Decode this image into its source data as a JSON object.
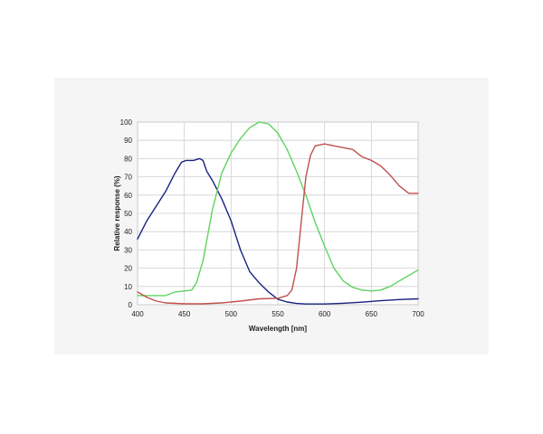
{
  "chart_data": {
    "type": "line",
    "title": "",
    "xlabel": "Wavelength [nm]",
    "ylabel": "Relative response  (%)",
    "xlim": [
      400,
      700
    ],
    "ylim": [
      0,
      100
    ],
    "x_ticks": [
      400,
      450,
      500,
      550,
      600,
      650,
      700
    ],
    "y_ticks": [
      0,
      10,
      20,
      30,
      40,
      50,
      60,
      70,
      80,
      90,
      100
    ],
    "grid": true,
    "legend": "none",
    "series": [
      {
        "color": "#1a237e",
        "points": [
          [
            400,
            36
          ],
          [
            410,
            46
          ],
          [
            420,
            54
          ],
          [
            430,
            62
          ],
          [
            440,
            72
          ],
          [
            447,
            78
          ],
          [
            452,
            79
          ],
          [
            460,
            79
          ],
          [
            466,
            80
          ],
          [
            470,
            79
          ],
          [
            474,
            73
          ],
          [
            480,
            68
          ],
          [
            490,
            58
          ],
          [
            500,
            46
          ],
          [
            510,
            30
          ],
          [
            520,
            18
          ],
          [
            530,
            12
          ],
          [
            540,
            7
          ],
          [
            550,
            3
          ],
          [
            560,
            1.5
          ],
          [
            570,
            0.7
          ],
          [
            580,
            0.4
          ],
          [
            600,
            0.4
          ],
          [
            620,
            0.8
          ],
          [
            640,
            1.4
          ],
          [
            660,
            2.2
          ],
          [
            680,
            2.8
          ],
          [
            700,
            3.2
          ]
        ]
      },
      {
        "color": "#5fd35f",
        "points": [
          [
            400,
            5
          ],
          [
            410,
            5
          ],
          [
            420,
            5
          ],
          [
            430,
            5
          ],
          [
            440,
            7
          ],
          [
            450,
            7.5
          ],
          [
            458,
            8
          ],
          [
            463,
            12
          ],
          [
            470,
            24
          ],
          [
            480,
            52
          ],
          [
            490,
            72
          ],
          [
            500,
            83
          ],
          [
            510,
            91
          ],
          [
            520,
            97
          ],
          [
            530,
            100
          ],
          [
            540,
            99
          ],
          [
            550,
            94
          ],
          [
            560,
            85
          ],
          [
            570,
            73
          ],
          [
            580,
            60
          ],
          [
            590,
            45
          ],
          [
            600,
            32
          ],
          [
            610,
            20
          ],
          [
            620,
            13
          ],
          [
            630,
            9.5
          ],
          [
            640,
            8
          ],
          [
            650,
            7.5
          ],
          [
            660,
            8
          ],
          [
            670,
            10
          ],
          [
            680,
            13
          ],
          [
            690,
            16
          ],
          [
            700,
            19
          ]
        ]
      },
      {
        "color": "#c0504d",
        "points": [
          [
            400,
            7
          ],
          [
            410,
            4
          ],
          [
            420,
            2
          ],
          [
            430,
            1
          ],
          [
            450,
            0.5
          ],
          [
            470,
            0.5
          ],
          [
            490,
            1
          ],
          [
            510,
            2
          ],
          [
            530,
            3.2
          ],
          [
            550,
            3.5
          ],
          [
            560,
            5
          ],
          [
            565,
            8
          ],
          [
            570,
            20
          ],
          [
            575,
            45
          ],
          [
            580,
            70
          ],
          [
            585,
            82
          ],
          [
            590,
            87
          ],
          [
            600,
            88
          ],
          [
            610,
            87
          ],
          [
            620,
            86
          ],
          [
            630,
            85
          ],
          [
            640,
            81
          ],
          [
            650,
            79
          ],
          [
            660,
            76
          ],
          [
            670,
            71
          ],
          [
            680,
            65
          ],
          [
            690,
            61
          ],
          [
            700,
            61
          ]
        ]
      }
    ]
  }
}
